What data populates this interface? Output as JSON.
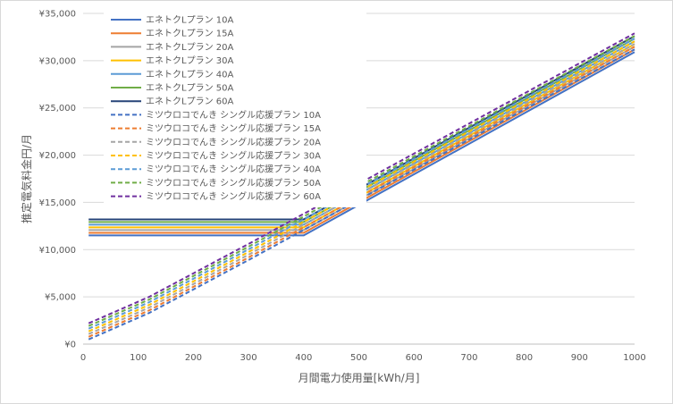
{
  "chart_data": {
    "type": "line",
    "xlabel": "月間電力使用量[kWh/月]",
    "ylabel": "推定電気料金円/月",
    "xlim": [
      0,
      1000
    ],
    "ylim": [
      0,
      35000
    ],
    "x_ticks": [
      "0",
      "100",
      "200",
      "300",
      "400",
      "500",
      "600",
      "700",
      "800",
      "900",
      "1000"
    ],
    "y_ticks": [
      "¥0",
      "¥5,000",
      "¥10,000",
      "¥15,000",
      "¥20,000",
      "¥25,000",
      "¥30,000",
      "¥35,000"
    ],
    "grid": "horizontal",
    "legend_position": "top-left",
    "series": [
      {
        "name": "エネトクLプラン 10A",
        "color": "#4472c4",
        "style": "solid",
        "x": [
          10,
          400,
          1000
        ],
        "y": [
          11500,
          11500,
          30900
        ]
      },
      {
        "name": "エネトクLプラン 15A",
        "color": "#ed7d31",
        "style": "solid",
        "x": [
          10,
          400,
          1000
        ],
        "y": [
          11780,
          11780,
          31180
        ]
      },
      {
        "name": "エネトクLプラン 20A",
        "color": "#a5a5a5",
        "style": "solid",
        "x": [
          10,
          400,
          1000
        ],
        "y": [
          12070,
          12070,
          31470
        ]
      },
      {
        "name": "エネトクLプラン 30A",
        "color": "#ffc000",
        "style": "solid",
        "x": [
          10,
          400,
          1000
        ],
        "y": [
          12350,
          12350,
          31750
        ]
      },
      {
        "name": "エネトクLプラン 40A",
        "color": "#5b9bd5",
        "style": "solid",
        "x": [
          10,
          400,
          1000
        ],
        "y": [
          12640,
          12640,
          32040
        ]
      },
      {
        "name": "エネトクLプラン 50A",
        "color": "#70ad47",
        "style": "solid",
        "x": [
          10,
          400,
          1000
        ],
        "y": [
          12920,
          12920,
          32320
        ]
      },
      {
        "name": "エネトクLプラン 60A",
        "color": "#264478",
        "style": "solid",
        "x": [
          10,
          400,
          1000
        ],
        "y": [
          13200,
          13200,
          32600
        ]
      },
      {
        "name": "ミツウロコでんき シングル応援プラン 10A",
        "color": "#4472c4",
        "style": "dashed",
        "x": [
          10,
          120,
          300,
          1000
        ],
        "y": [
          500,
          3300,
          8900,
          31200
        ]
      },
      {
        "name": "ミツウロコでんき シングル応援プラン 15A",
        "color": "#ed7d31",
        "style": "dashed",
        "x": [
          10,
          120,
          300,
          1000
        ],
        "y": [
          780,
          3580,
          9180,
          31480
        ]
      },
      {
        "name": "ミツウロコでんき シングル応援プラン 20A",
        "color": "#a5a5a5",
        "style": "dashed",
        "x": [
          10,
          120,
          300,
          1000
        ],
        "y": [
          1070,
          3870,
          9470,
          31770
        ]
      },
      {
        "name": "ミツウロコでんき シングル応援プラン 30A",
        "color": "#ffc000",
        "style": "dashed",
        "x": [
          10,
          120,
          300,
          1000
        ],
        "y": [
          1350,
          4150,
          9750,
          32050
        ]
      },
      {
        "name": "ミツウロコでんき シングル応援プラン 40A",
        "color": "#5b9bd5",
        "style": "dashed",
        "x": [
          10,
          120,
          300,
          1000
        ],
        "y": [
          1640,
          4440,
          10040,
          32340
        ]
      },
      {
        "name": "ミツウロコでんき シングル応援プラン 50A",
        "color": "#70ad47",
        "style": "dashed",
        "x": [
          10,
          120,
          300,
          1000
        ],
        "y": [
          1920,
          4720,
          10320,
          32620
        ]
      },
      {
        "name": "ミツウロコでんき シングル応援プラン 60A",
        "color": "#7030a0",
        "style": "dashed",
        "x": [
          10,
          120,
          300,
          1000
        ],
        "y": [
          2200,
          5000,
          10600,
          32900
        ]
      }
    ]
  }
}
